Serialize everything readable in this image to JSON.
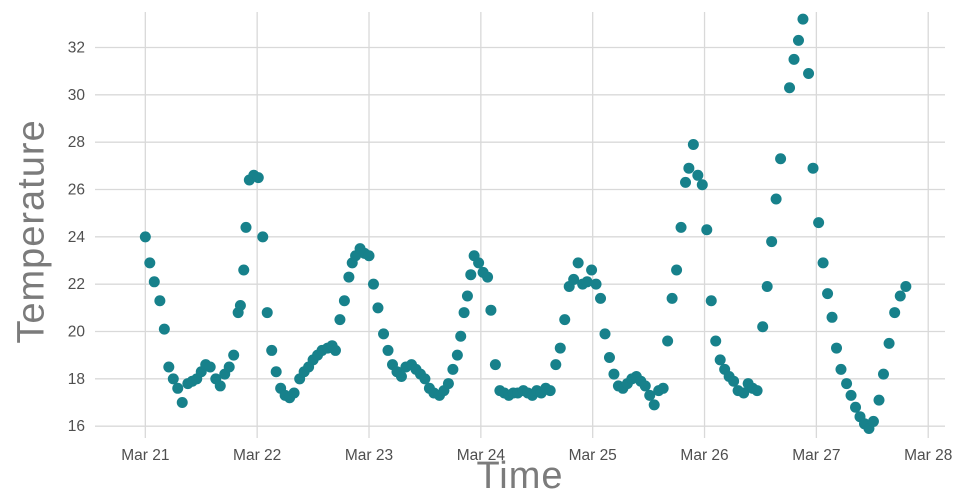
{
  "chart_data": {
    "type": "scatter",
    "title": "",
    "xlabel": "Time",
    "ylabel": "Temperature",
    "legend": null,
    "grid": true,
    "marker_color": "#17818b",
    "grid_color": "#d9d9d9",
    "tick_color": "#4f4f4f",
    "axis_title_color": "#7b7b7b",
    "x_unit": "days since Mar 21",
    "x_tick_values": [
      0,
      1,
      2,
      3,
      4,
      5,
      6,
      7
    ],
    "x_tick_labels": [
      "Mar 21",
      "Mar 22",
      "Mar 23",
      "Mar 24",
      "Mar 25",
      "Mar 26",
      "Mar 27",
      "Mar 28"
    ],
    "y_ticks": [
      16,
      18,
      20,
      22,
      24,
      26,
      28,
      30,
      32
    ],
    "x_domain": [
      -0.45,
      7.15
    ],
    "y_domain": [
      15.5,
      33.5
    ],
    "points": [
      [
        0.0,
        24.0
      ],
      [
        0.04,
        22.9
      ],
      [
        0.08,
        22.1
      ],
      [
        0.13,
        21.3
      ],
      [
        0.17,
        20.1
      ],
      [
        0.21,
        18.5
      ],
      [
        0.25,
        18.0
      ],
      [
        0.29,
        17.6
      ],
      [
        0.33,
        17.0
      ],
      [
        0.38,
        17.8
      ],
      [
        0.42,
        17.9
      ],
      [
        0.46,
        18.0
      ],
      [
        0.5,
        18.3
      ],
      [
        0.54,
        18.6
      ],
      [
        0.58,
        18.5
      ],
      [
        0.63,
        18.0
      ],
      [
        0.67,
        17.7
      ],
      [
        0.71,
        18.2
      ],
      [
        0.75,
        18.5
      ],
      [
        0.79,
        19.0
      ],
      [
        0.83,
        20.8
      ],
      [
        0.85,
        21.1
      ],
      [
        0.88,
        22.6
      ],
      [
        0.9,
        24.4
      ],
      [
        0.93,
        26.4
      ],
      [
        0.97,
        26.6
      ],
      [
        1.01,
        26.5
      ],
      [
        1.05,
        24.0
      ],
      [
        1.09,
        20.8
      ],
      [
        1.13,
        19.2
      ],
      [
        1.17,
        18.3
      ],
      [
        1.21,
        17.6
      ],
      [
        1.25,
        17.3
      ],
      [
        1.29,
        17.2
      ],
      [
        1.33,
        17.4
      ],
      [
        1.38,
        18.0
      ],
      [
        1.42,
        18.3
      ],
      [
        1.46,
        18.5
      ],
      [
        1.5,
        18.8
      ],
      [
        1.54,
        19.0
      ],
      [
        1.58,
        19.2
      ],
      [
        1.63,
        19.3
      ],
      [
        1.67,
        19.4
      ],
      [
        1.7,
        19.2
      ],
      [
        1.74,
        20.5
      ],
      [
        1.78,
        21.3
      ],
      [
        1.82,
        22.3
      ],
      [
        1.85,
        22.9
      ],
      [
        1.88,
        23.2
      ],
      [
        1.92,
        23.5
      ],
      [
        1.96,
        23.3
      ],
      [
        2.0,
        23.2
      ],
      [
        2.04,
        22.0
      ],
      [
        2.08,
        21.0
      ],
      [
        2.13,
        19.9
      ],
      [
        2.17,
        19.2
      ],
      [
        2.21,
        18.6
      ],
      [
        2.25,
        18.3
      ],
      [
        2.29,
        18.1
      ],
      [
        2.33,
        18.5
      ],
      [
        2.38,
        18.6
      ],
      [
        2.42,
        18.4
      ],
      [
        2.46,
        18.2
      ],
      [
        2.5,
        18.0
      ],
      [
        2.54,
        17.6
      ],
      [
        2.58,
        17.4
      ],
      [
        2.63,
        17.3
      ],
      [
        2.67,
        17.5
      ],
      [
        2.71,
        17.8
      ],
      [
        2.75,
        18.4
      ],
      [
        2.79,
        19.0
      ],
      [
        2.82,
        19.8
      ],
      [
        2.85,
        20.8
      ],
      [
        2.88,
        21.5
      ],
      [
        2.91,
        22.4
      ],
      [
        2.94,
        23.2
      ],
      [
        2.98,
        22.9
      ],
      [
        3.02,
        22.5
      ],
      [
        3.06,
        22.3
      ],
      [
        3.09,
        20.9
      ],
      [
        3.13,
        18.6
      ],
      [
        3.17,
        17.5
      ],
      [
        3.21,
        17.4
      ],
      [
        3.25,
        17.3
      ],
      [
        3.29,
        17.4
      ],
      [
        3.33,
        17.4
      ],
      [
        3.38,
        17.5
      ],
      [
        3.42,
        17.4
      ],
      [
        3.46,
        17.3
      ],
      [
        3.5,
        17.5
      ],
      [
        3.54,
        17.4
      ],
      [
        3.58,
        17.6
      ],
      [
        3.62,
        17.5
      ],
      [
        3.67,
        18.6
      ],
      [
        3.71,
        19.3
      ],
      [
        3.75,
        20.5
      ],
      [
        3.79,
        21.9
      ],
      [
        3.83,
        22.2
      ],
      [
        3.87,
        22.9
      ],
      [
        3.91,
        22.0
      ],
      [
        3.95,
        22.1
      ],
      [
        3.99,
        22.6
      ],
      [
        4.03,
        22.0
      ],
      [
        4.07,
        21.4
      ],
      [
        4.11,
        19.9
      ],
      [
        4.15,
        18.9
      ],
      [
        4.19,
        18.2
      ],
      [
        4.23,
        17.7
      ],
      [
        4.27,
        17.6
      ],
      [
        4.31,
        17.8
      ],
      [
        4.35,
        18.0
      ],
      [
        4.39,
        18.1
      ],
      [
        4.43,
        17.9
      ],
      [
        4.47,
        17.7
      ],
      [
        4.51,
        17.3
      ],
      [
        4.55,
        16.9
      ],
      [
        4.59,
        17.5
      ],
      [
        4.63,
        17.6
      ],
      [
        4.67,
        19.6
      ],
      [
        4.71,
        21.4
      ],
      [
        4.75,
        22.6
      ],
      [
        4.79,
        24.4
      ],
      [
        4.83,
        26.3
      ],
      [
        4.86,
        26.9
      ],
      [
        4.9,
        27.9
      ],
      [
        4.94,
        26.6
      ],
      [
        4.98,
        26.2
      ],
      [
        5.02,
        24.3
      ],
      [
        5.06,
        21.3
      ],
      [
        5.1,
        19.6
      ],
      [
        5.14,
        18.8
      ],
      [
        5.18,
        18.4
      ],
      [
        5.22,
        18.1
      ],
      [
        5.26,
        17.9
      ],
      [
        5.3,
        17.5
      ],
      [
        5.35,
        17.4
      ],
      [
        5.39,
        17.8
      ],
      [
        5.43,
        17.6
      ],
      [
        5.47,
        17.5
      ],
      [
        5.52,
        20.2
      ],
      [
        5.56,
        21.9
      ],
      [
        5.6,
        23.8
      ],
      [
        5.64,
        25.6
      ],
      [
        5.68,
        27.3
      ],
      [
        5.76,
        30.3
      ],
      [
        5.8,
        31.5
      ],
      [
        5.84,
        32.3
      ],
      [
        5.88,
        33.2
      ],
      [
        5.93,
        30.9
      ],
      [
        5.97,
        26.9
      ],
      [
        6.02,
        24.6
      ],
      [
        6.06,
        22.9
      ],
      [
        6.1,
        21.6
      ],
      [
        6.14,
        20.6
      ],
      [
        6.18,
        19.3
      ],
      [
        6.22,
        18.4
      ],
      [
        6.27,
        17.8
      ],
      [
        6.31,
        17.3
      ],
      [
        6.35,
        16.8
      ],
      [
        6.39,
        16.4
      ],
      [
        6.43,
        16.1
      ],
      [
        6.47,
        15.9
      ],
      [
        6.51,
        16.2
      ],
      [
        6.56,
        17.1
      ],
      [
        6.6,
        18.2
      ],
      [
        6.65,
        19.5
      ],
      [
        6.7,
        20.8
      ],
      [
        6.75,
        21.5
      ],
      [
        6.8,
        21.9
      ]
    ]
  }
}
